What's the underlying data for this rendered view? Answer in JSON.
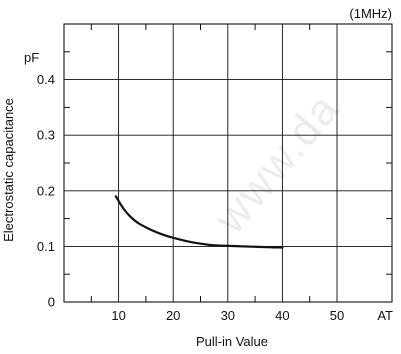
{
  "chart_data": {
    "type": "line",
    "title": "",
    "annotation": "(1MHz)",
    "watermark": "www.da",
    "xlabel": "Pull-in Value",
    "ylabel": "Electrostatic capacitance",
    "yunit": "pF",
    "xunit": "AT",
    "xlim": [
      0,
      50
    ],
    "ylim": [
      0,
      0.5
    ],
    "x_ticks": [
      10,
      20,
      30,
      40,
      50
    ],
    "x_tick_labels": [
      "10",
      "20",
      "30",
      "40",
      "50"
    ],
    "y_ticks": [
      0,
      0.1,
      0.2,
      0.3,
      0.4
    ],
    "y_tick_labels": [
      "0",
      "0.1",
      "0.2",
      "0.3",
      "0.4"
    ],
    "grid": true,
    "series": [
      {
        "x": [
          9.5,
          11,
          13,
          15,
          17,
          19,
          21,
          23,
          25,
          27,
          30,
          33,
          36,
          40
        ],
        "values": [
          0.19,
          0.165,
          0.145,
          0.134,
          0.125,
          0.118,
          0.113,
          0.108,
          0.105,
          0.102,
          0.101,
          0.1,
          0.099,
          0.098
        ]
      }
    ]
  }
}
